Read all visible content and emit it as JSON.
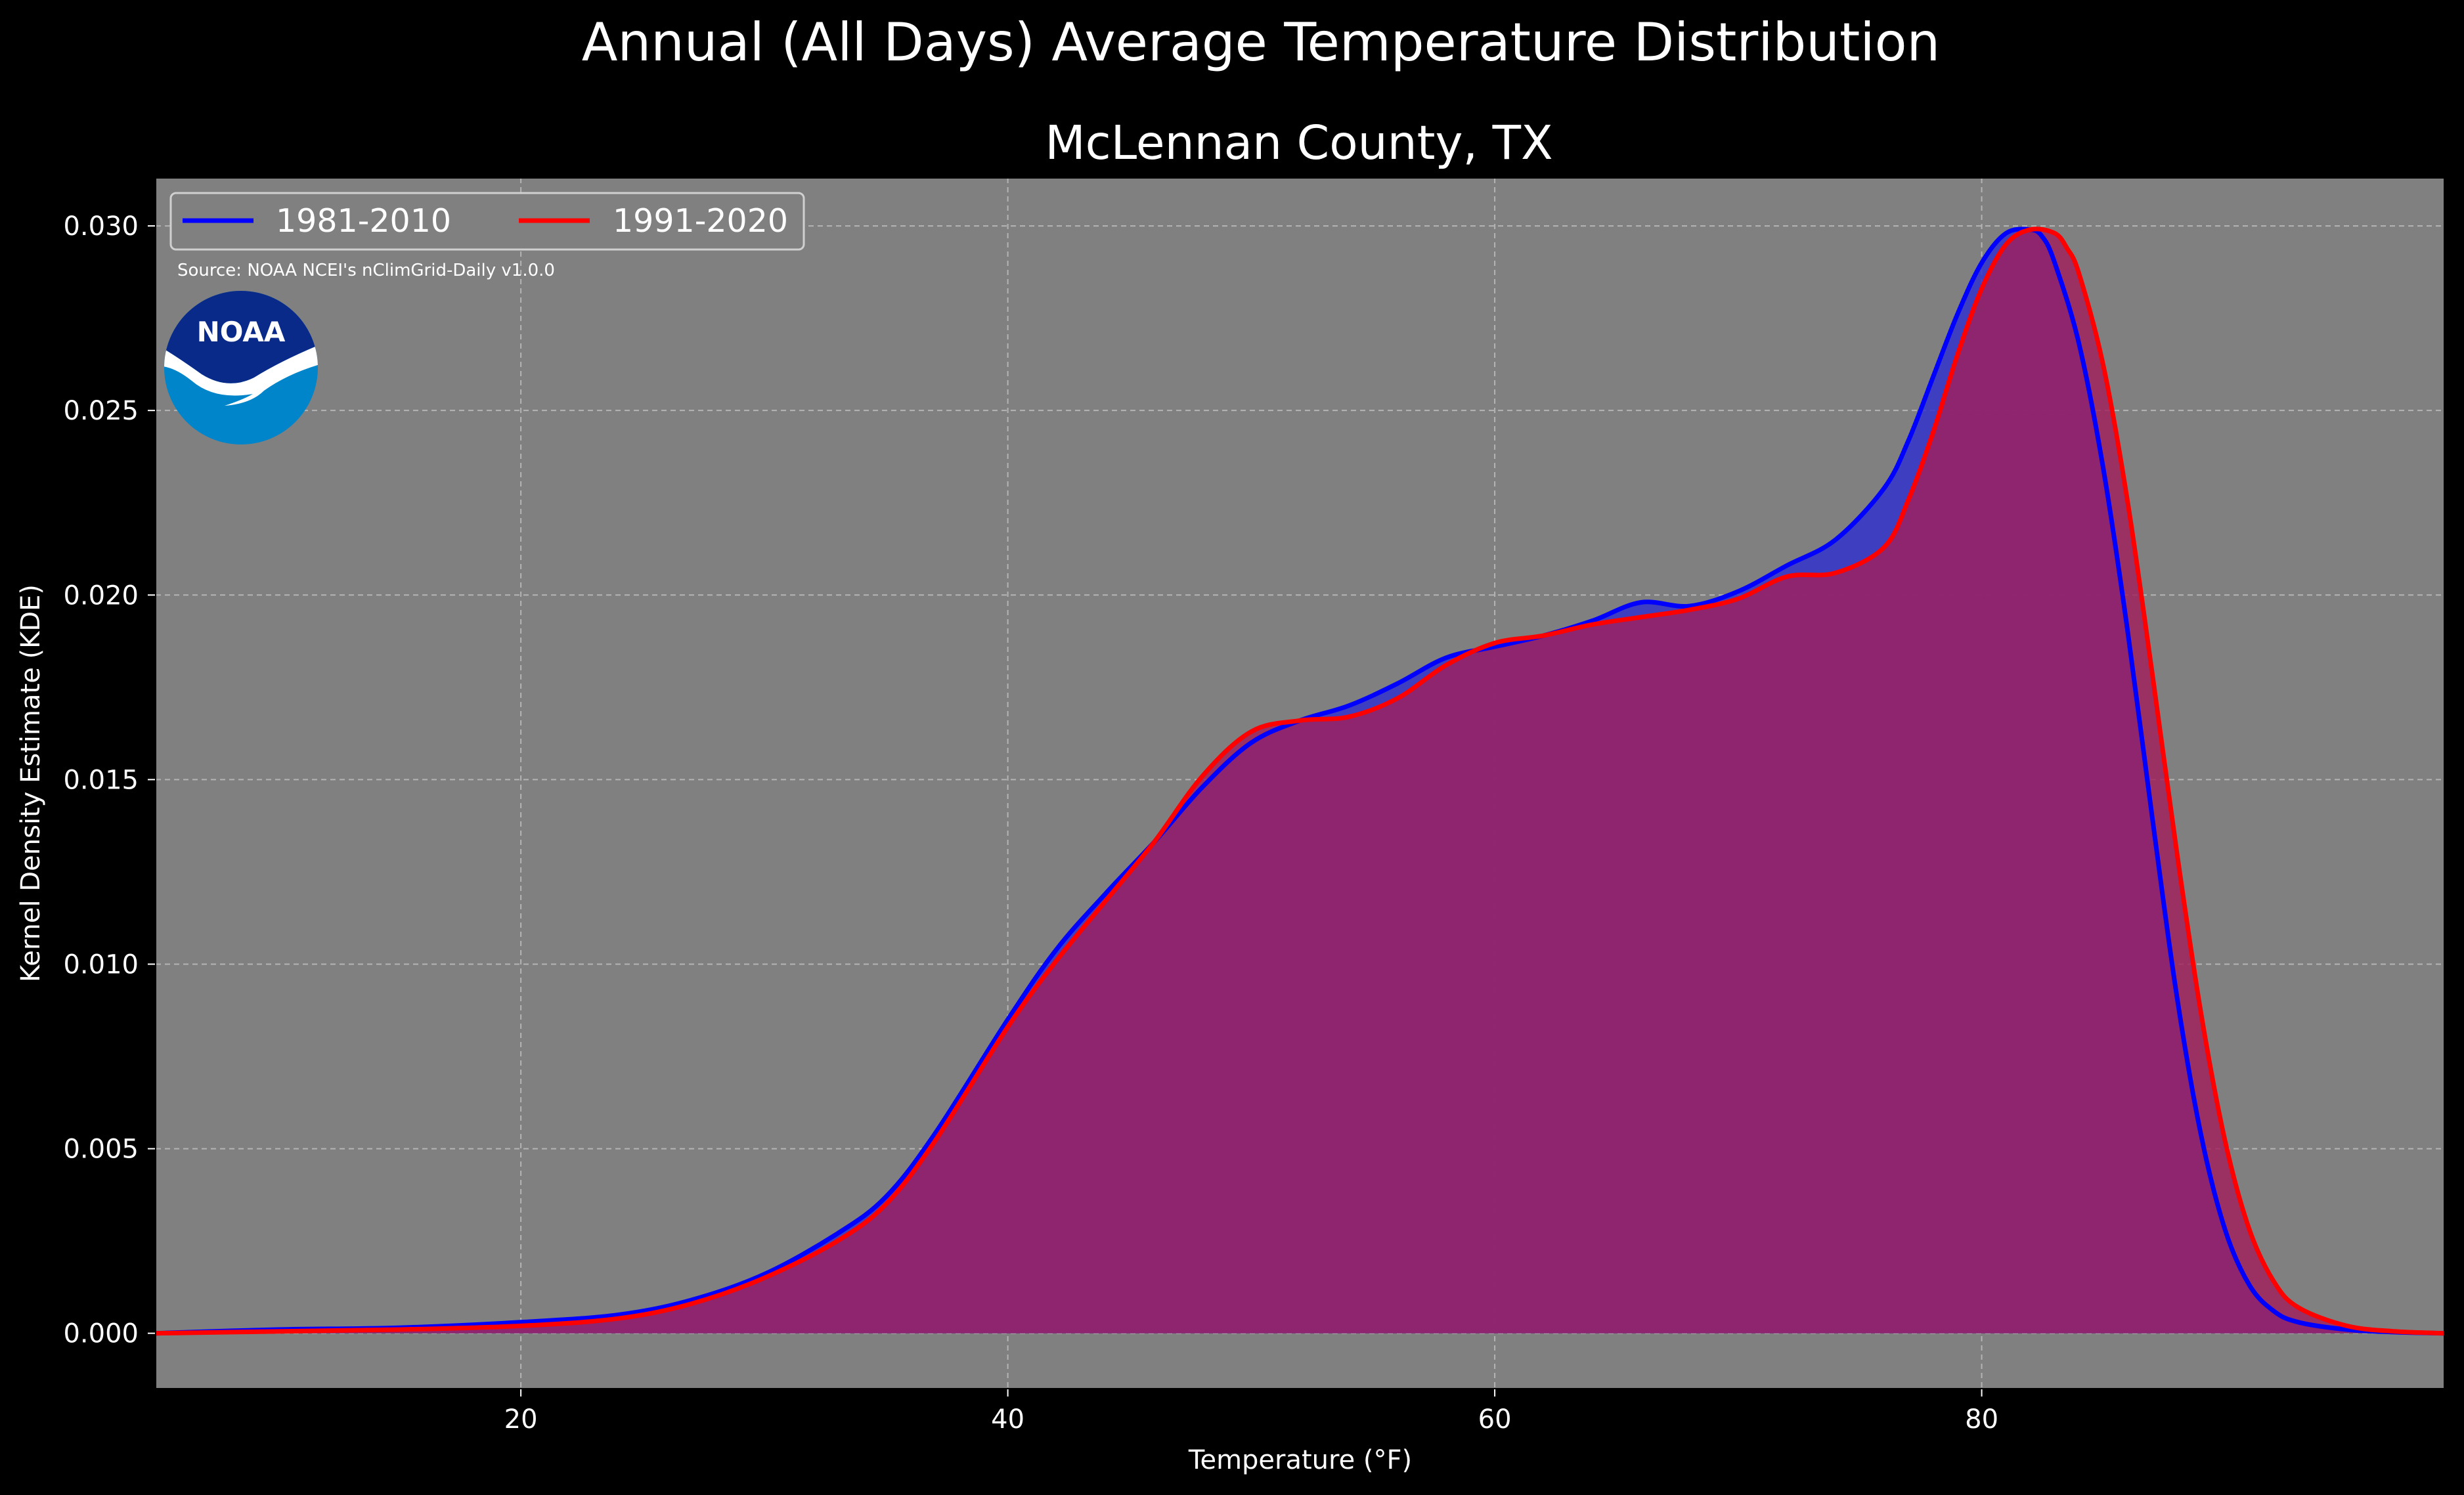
{
  "figure": {
    "suptitle": "Annual (All Days) Average Temperature Distribution",
    "source": "Source: NOAA NCEI's nClimGrid-Daily v1.0.0",
    "logo_text": "NOAA"
  },
  "colors": {
    "background": "#000000",
    "plot_background": "#808080",
    "grid": "#b4b4b4",
    "series_1981": "#0000ff",
    "series_1991": "#ff0000",
    "fill_1981": "#3333cc",
    "fill_1991": "#a0205c",
    "logo_dark": "#0a2a8a",
    "logo_light": "#0085ca"
  },
  "chart_data": {
    "type": "area",
    "title": "McLennan County, TX",
    "xlabel": "Temperature ($^\\circ$F)",
    "ylabel": "Kernel Density Estimate (KDE)",
    "xlim": [
      5,
      99
    ],
    "ylim": [
      -0.0015,
      0.0313
    ],
    "xticks": [
      20,
      40,
      60,
      80
    ],
    "xtick_labels": [
      "20",
      "40",
      "60",
      "80"
    ],
    "yticks": [
      0.0,
      0.005,
      0.01,
      0.015,
      0.02,
      0.025,
      0.03
    ],
    "ytick_labels": [
      "0.000",
      "0.005",
      "0.010",
      "0.015",
      "0.020",
      "0.025",
      "0.030"
    ],
    "grid": true,
    "legend_position": "top-left",
    "series": [
      {
        "name": "1981-2010",
        "color": "#0000ff",
        "x": [
          5,
          10,
          15,
          20,
          24,
          27,
          30,
          33,
          35,
          37,
          40,
          42,
          44,
          46,
          48,
          50,
          52,
          54,
          56,
          58,
          60,
          62,
          64,
          66,
          68,
          70,
          72,
          74,
          76,
          77,
          78,
          79,
          80,
          81,
          82,
          82.5,
          83,
          84,
          85,
          86,
          87,
          88,
          89,
          90,
          91,
          92,
          93,
          95,
          97,
          99
        ],
        "y": [
          0.0,
          0.0001,
          0.00015,
          0.0003,
          0.0005,
          0.0009,
          0.0016,
          0.0027,
          0.0037,
          0.0054,
          0.0085,
          0.0104,
          0.0119,
          0.0133,
          0.0148,
          0.016,
          0.0166,
          0.017,
          0.0176,
          0.0183,
          0.0186,
          0.0189,
          0.0193,
          0.0198,
          0.0197,
          0.0201,
          0.0208,
          0.0215,
          0.0229,
          0.0242,
          0.0259,
          0.0276,
          0.029,
          0.0298,
          0.0299,
          0.0297,
          0.029,
          0.0268,
          0.0234,
          0.019,
          0.014,
          0.0092,
          0.0054,
          0.0028,
          0.0013,
          0.0006,
          0.0003,
          0.0001,
          3e-05,
          0.0
        ]
      },
      {
        "name": "1991-2020",
        "color": "#ff0000",
        "x": [
          5,
          10,
          15,
          20,
          24,
          27,
          30,
          33,
          35,
          37,
          40,
          42,
          44,
          46,
          48,
          50,
          52,
          54,
          56,
          58,
          60,
          62,
          64,
          66,
          68,
          70,
          72,
          74,
          76,
          77,
          78,
          79,
          80,
          81,
          82,
          83,
          83.5,
          84,
          85,
          86,
          87,
          88,
          89,
          90,
          91,
          92,
          93,
          95,
          97,
          99
        ],
        "y": [
          0.0,
          5e-05,
          0.0001,
          0.0002,
          0.0004,
          0.0008,
          0.0015,
          0.0025,
          0.0035,
          0.0052,
          0.0083,
          0.0101,
          0.0117,
          0.0133,
          0.0151,
          0.0163,
          0.0166,
          0.0167,
          0.0172,
          0.0181,
          0.0187,
          0.0189,
          0.0192,
          0.0194,
          0.0196,
          0.0199,
          0.0205,
          0.0206,
          0.0213,
          0.0226,
          0.0244,
          0.0265,
          0.0283,
          0.0295,
          0.0299,
          0.0298,
          0.0294,
          0.0287,
          0.0262,
          0.0225,
          0.0179,
          0.0131,
          0.0087,
          0.0052,
          0.0028,
          0.0014,
          0.0007,
          0.0002,
          5e-05,
          0.0
        ]
      }
    ]
  }
}
